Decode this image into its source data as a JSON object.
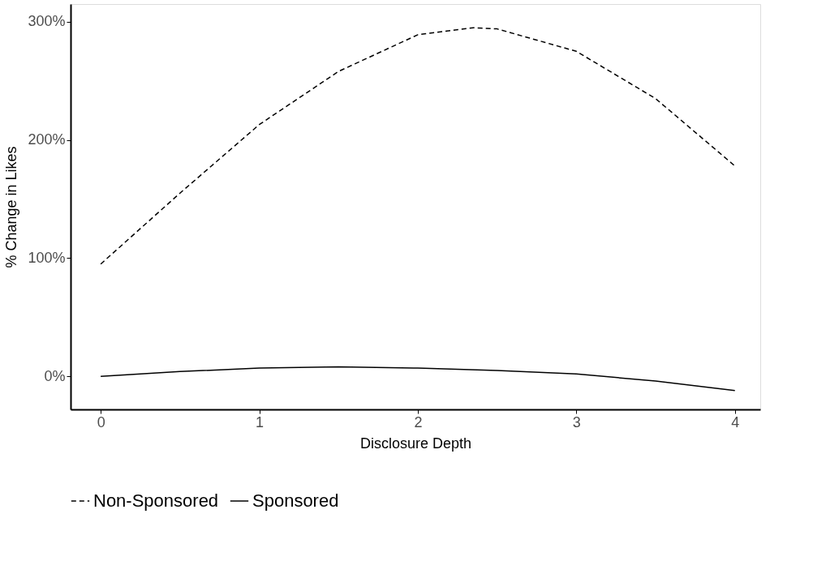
{
  "chart_data": {
    "type": "line",
    "xlabel": "Disclosure Depth",
    "ylabel": "% Change in Likes",
    "xlim": [
      -0.19,
      4.16
    ],
    "xticks": [
      0,
      1,
      2,
      3,
      4
    ],
    "ylim": [
      -28,
      315
    ],
    "yticks": [
      {
        "value": 0,
        "label": "0%"
      },
      {
        "value": 100,
        "label": "100%"
      },
      {
        "value": 200,
        "label": "200%"
      },
      {
        "value": 300,
        "label": "300%"
      }
    ],
    "grid": false,
    "legend": "bottom",
    "marker": "none",
    "series": [
      {
        "name": "Non-Sponsored",
        "color": "#000000",
        "line_style": "dashed",
        "x": [
          0,
          0.5,
          1,
          1.5,
          2,
          2.35,
          2.5,
          3,
          3.5,
          4
        ],
        "values": [
          95,
          155,
          213,
          258,
          289,
          295,
          294,
          275,
          235,
          178
        ]
      },
      {
        "name": "Sponsored",
        "color": "#000000",
        "line_style": "solid",
        "x": [
          0,
          0.5,
          1,
          1.5,
          2,
          2.5,
          3,
          3.5,
          4
        ],
        "values": [
          0,
          4,
          7,
          8,
          7,
          5,
          2,
          -4,
          -12
        ]
      }
    ]
  }
}
